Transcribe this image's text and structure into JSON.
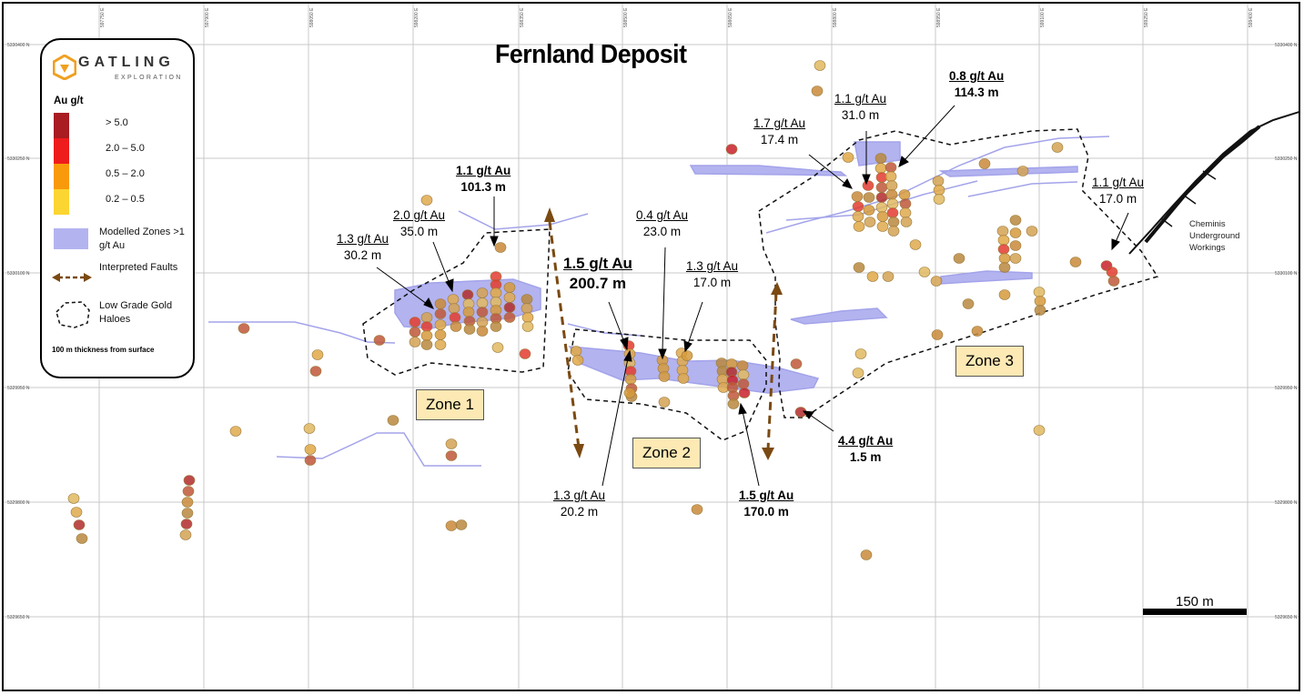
{
  "title": "Fernland Deposit",
  "legend": {
    "brand_name": "GATLING",
    "brand_sub": "EXPLORATION",
    "grade_title": "Au g/t",
    "grade_classes": [
      {
        "label": "> 5.0",
        "color": "#a81c22"
      },
      {
        "label": "2.0 – 5.0",
        "color": "#ee1c1c"
      },
      {
        "label": "0.5 – 2.0",
        "color": "#f99a0c"
      },
      {
        "label": "0.2 – 0.5",
        "color": "#fbd532"
      }
    ],
    "modelled_zones": "Modelled Zones >1 g/t Au",
    "faults": "Interpreted Faults",
    "haloes": "Low Grade Gold Haloes",
    "note": "100 m thickness from surface",
    "modelled_color": "#b3b3f0",
    "fault_color": "#7a4a12"
  },
  "zones": [
    "Zone 1",
    "Zone 2",
    "Zone 3"
  ],
  "intercepts": [
    {
      "grade": "1.1 g/t Au",
      "length": "101.3 m"
    },
    {
      "grade": "2.0 g/t Au",
      "length": "35.0 m"
    },
    {
      "grade": "1.3 g/t Au",
      "length": "30.2 m"
    },
    {
      "grade": "1.5 g/t Au",
      "length": "200.7 m"
    },
    {
      "grade": "0.4 g/t Au",
      "length": "23.0 m"
    },
    {
      "grade": "1.3 g/t Au",
      "length": "17.0 m"
    },
    {
      "grade": "1.3 g/t Au",
      "length": "20.2 m"
    },
    {
      "grade": "1.5 g/t Au",
      "length": "170.0 m"
    },
    {
      "grade": "4.4 g/t Au",
      "length": "1.5 m"
    },
    {
      "grade": "1.7 g/t Au",
      "length": "17.4 m"
    },
    {
      "grade": "1.1 g/t Au",
      "length": "31.0 m"
    },
    {
      "grade": "0.8 g/t Au",
      "length": "114.3 m"
    },
    {
      "grade": "1.1 g/t Au",
      "length": "17.0 m"
    }
  ],
  "cheminis": [
    "Cheminis",
    "Underground",
    "Workings"
  ],
  "scale_label": "150 m",
  "northings": [
    "5330400 N",
    "5330250 N",
    "5330100 N",
    "5329950 N",
    "5329800 N",
    "5329650 N"
  ],
  "eastings": [
    "597750 E",
    "597900 E",
    "598050 E",
    "598200 E",
    "598350 E",
    "598500 E",
    "598650 E",
    "598800 E",
    "598950 E",
    "599100 E",
    "599250 E",
    "599400 E"
  ]
}
